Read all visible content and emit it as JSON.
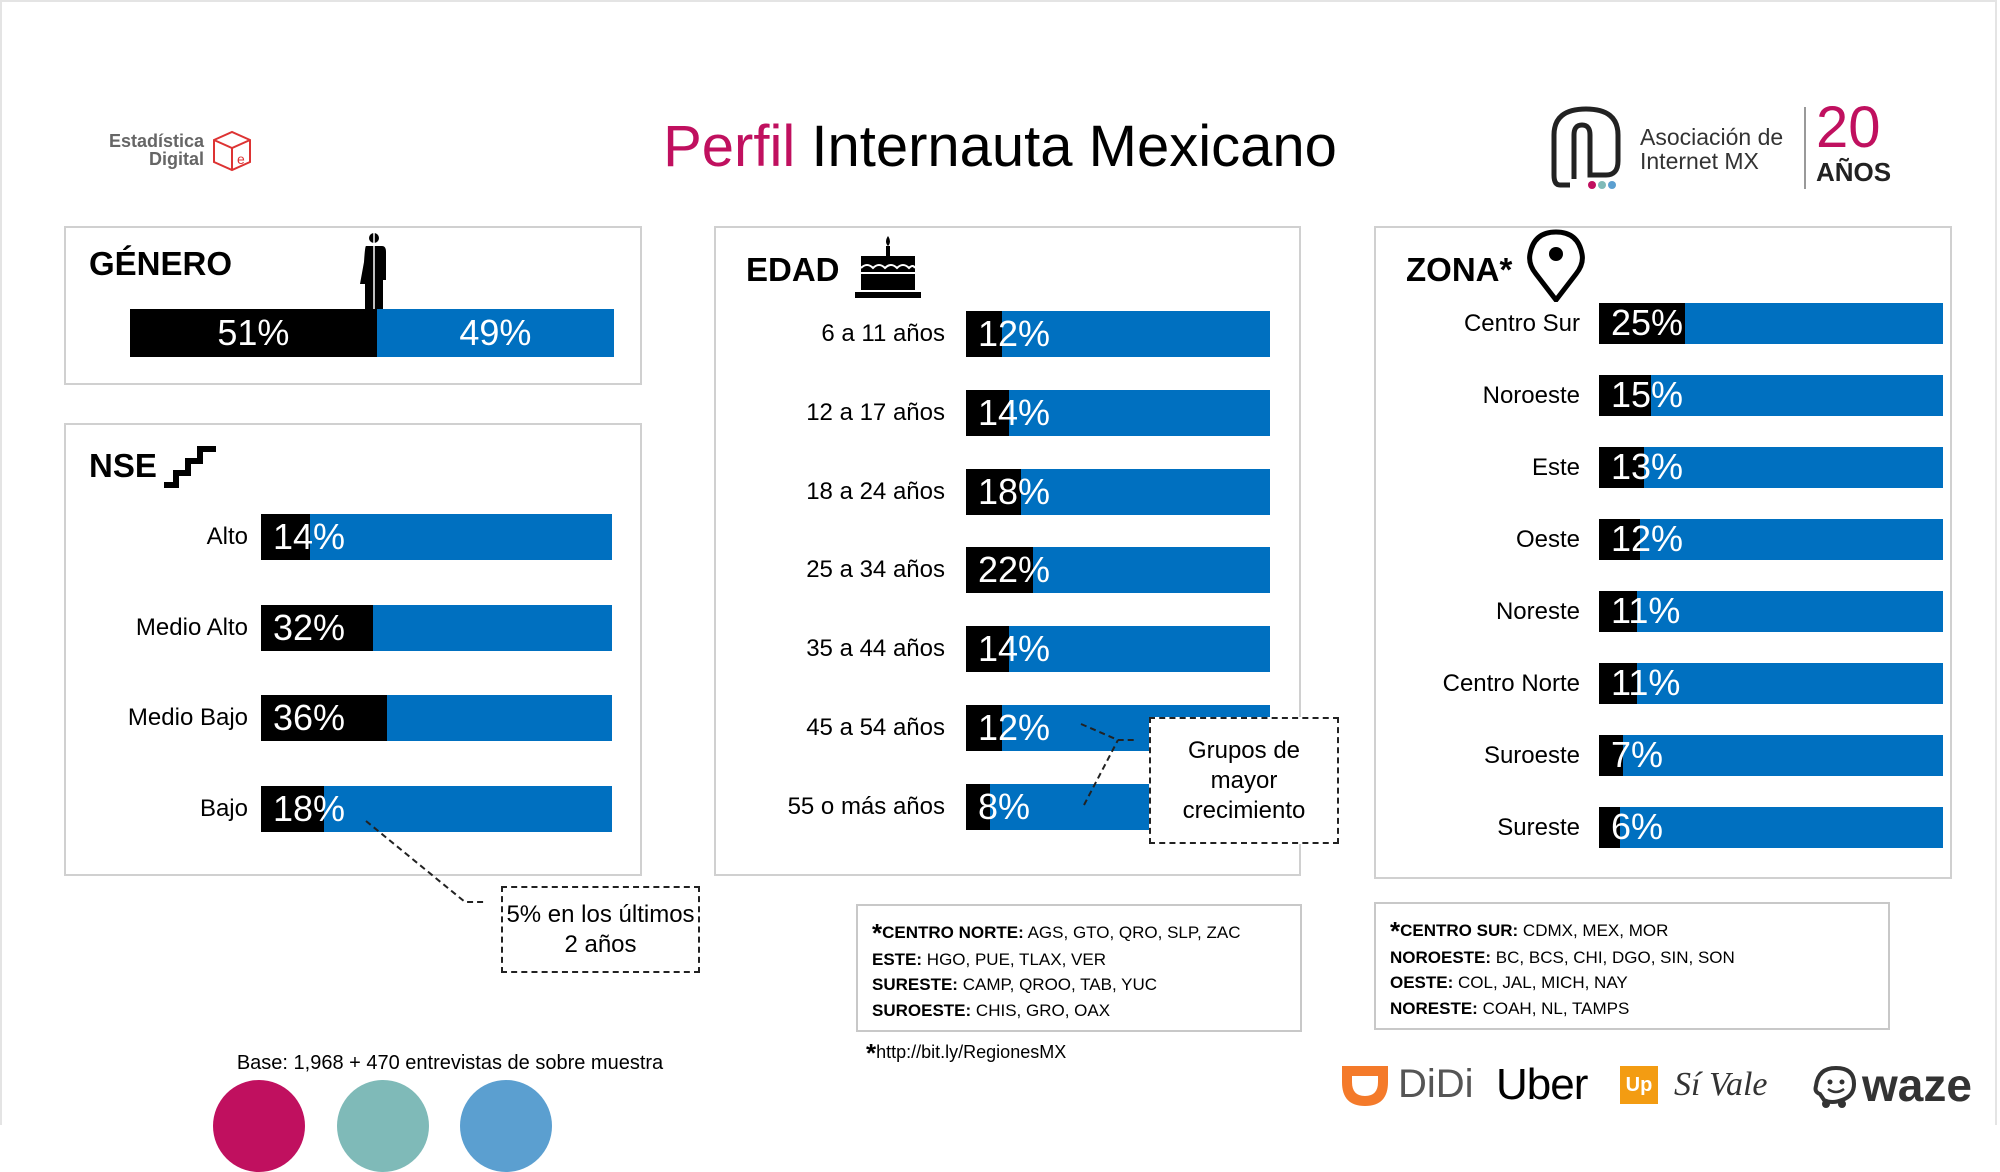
{
  "header": {
    "title_accent": "Perfil",
    "title_rest": "Internauta Mexicano"
  },
  "logos": {
    "left": "Estadística Digital",
    "right_line1": "Asociación de",
    "right_line2": "Internet MX",
    "right_badge_num": "20",
    "right_badge_text": "AÑOS"
  },
  "colors": {
    "accent": "#c0105f",
    "bar_blue": "#0070c0",
    "bar_black": "#000000"
  },
  "chart_data": [
    {
      "type": "bar",
      "title": "GÉNERO",
      "icon": "person-icon",
      "stacked": true,
      "series": [
        {
          "value": 51,
          "label": "51%",
          "color": "#000000"
        },
        {
          "value": 49,
          "label": "49%",
          "color": "#0070c0"
        }
      ]
    },
    {
      "type": "bar",
      "title": "NSE",
      "icon": "stairs-icon",
      "categories": [
        "Alto",
        "Medio Alto",
        "Medio Bajo",
        "Bajo"
      ],
      "values": [
        14,
        32,
        36,
        18
      ],
      "labels": [
        "14%",
        "32%",
        "36%",
        "18%"
      ],
      "annotation": "5% en los últimos 2 años"
    },
    {
      "type": "bar",
      "title": "EDAD",
      "icon": "cake-icon",
      "categories": [
        "6 a 11 años",
        "12 a 17 años",
        "18 a 24 años",
        "25 a 34 años",
        "35 a 44 años",
        "45 a 54 años",
        "55 o más años"
      ],
      "values": [
        12,
        14,
        18,
        22,
        14,
        12,
        8
      ],
      "labels": [
        "12%",
        "14%",
        "18%",
        "22%",
        "14%",
        "12%",
        "8%"
      ],
      "annotation": "Grupos de mayor crecimiento"
    },
    {
      "type": "bar",
      "title": "ZONA*",
      "icon": "location-pin-icon",
      "categories": [
        "Centro Sur",
        "Noroeste",
        "Este",
        "Oeste",
        "Noreste",
        "Centro Norte",
        "Suroeste",
        "Sureste"
      ],
      "values": [
        25,
        15,
        13,
        12,
        11,
        11,
        7,
        6
      ],
      "labels": [
        "25%",
        "15%",
        "13%",
        "12%",
        "11%",
        "11%",
        "7%",
        "6%"
      ]
    }
  ],
  "regions_left": [
    {
      "name": "CENTRO NORTE:",
      "states": "AGS, GTO, QRO, SLP, ZAC"
    },
    {
      "name": "ESTE:",
      "states": "HGO, PUE, TLAX, VER"
    },
    {
      "name": "SURESTE:",
      "states": "CAMP, QROO, TAB, YUC"
    },
    {
      "name": "SUROESTE:",
      "states": "CHIS, GRO, OAX"
    }
  ],
  "regions_right": [
    {
      "name": "CENTRO SUR:",
      "states": "CDMX, MEX, MOR"
    },
    {
      "name": "NOROESTE:",
      "states": "BC, BCS, CHI, DGO, SIN, SON"
    },
    {
      "name": "OESTE:",
      "states": "COL, JAL, MICH, NAY"
    },
    {
      "name": "NORESTE:",
      "states": "COAH, NL, TAMPS"
    }
  ],
  "footnote_star": "*",
  "link": "http://bit.ly/RegionesMX",
  "base": "Base: 1,968 + 470 entrevistas de sobre muestra",
  "circles": [
    "#c0105f",
    "#7fbab8",
    "#5b9fd0"
  ],
  "brands": [
    "DiDi",
    "Uber",
    "Up",
    "Sí Vale",
    "waze"
  ]
}
